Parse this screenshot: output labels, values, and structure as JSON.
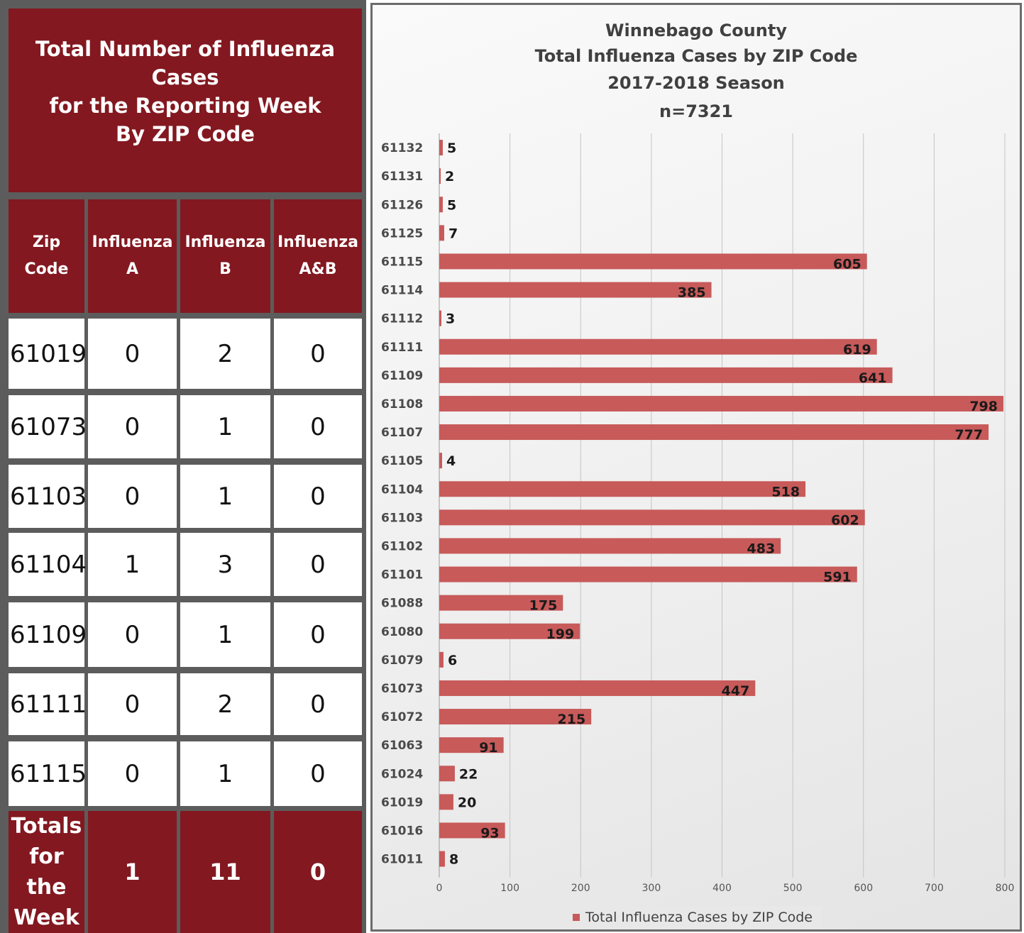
{
  "table": {
    "title": "Total Number of  Influenza Cases\nfor the Reporting Week\nBy ZIP Code",
    "headers": [
      "Zip\nCode",
      "Influenza\nA",
      "Influenza\nB",
      "Influenza\nA&B"
    ],
    "rows": [
      [
        "61019",
        "0",
        "2",
        "0"
      ],
      [
        "61073",
        "0",
        "1",
        "0"
      ],
      [
        "61103",
        "0",
        "1",
        "0"
      ],
      [
        "61104",
        "1",
        "3",
        "0"
      ],
      [
        "61109",
        "0",
        "1",
        "0"
      ],
      [
        "61111",
        "0",
        "2",
        "0"
      ],
      [
        "61115",
        "0",
        "1",
        "0"
      ]
    ],
    "totals_label": "Totals\nfor\nthe\nWeek",
    "totals": [
      "1",
      "11",
      "0"
    ]
  },
  "colors": {
    "maroon": "#831820",
    "bar": "#c85a5a",
    "border": "#5c5c5c"
  },
  "chart_data": {
    "type": "bar",
    "orientation": "horizontal",
    "title_lines": [
      "Winnebago County",
      "Total Influenza Cases by ZIP Code",
      "2017-2018 Season",
      "n=7321"
    ],
    "categories": [
      "61132",
      "61131",
      "61126",
      "61125",
      "61115",
      "61114",
      "61112",
      "61111",
      "61109",
      "61108",
      "61107",
      "61105",
      "61104",
      "61103",
      "61102",
      "61101",
      "61088",
      "61080",
      "61079",
      "61073",
      "61072",
      "61063",
      "61024",
      "61019",
      "61016",
      "61011"
    ],
    "series": [
      {
        "name": "Total Influenza Cases by ZIP Code",
        "values": [
          5,
          2,
          5,
          7,
          605,
          385,
          3,
          619,
          641,
          798,
          777,
          4,
          518,
          602,
          483,
          591,
          175,
          199,
          6,
          447,
          215,
          91,
          22,
          20,
          93,
          8
        ]
      }
    ],
    "xlim": [
      0,
      800
    ],
    "xticks": [
      0,
      100,
      200,
      300,
      400,
      500,
      600,
      700,
      800
    ],
    "grid": true,
    "legend": "bottom"
  }
}
